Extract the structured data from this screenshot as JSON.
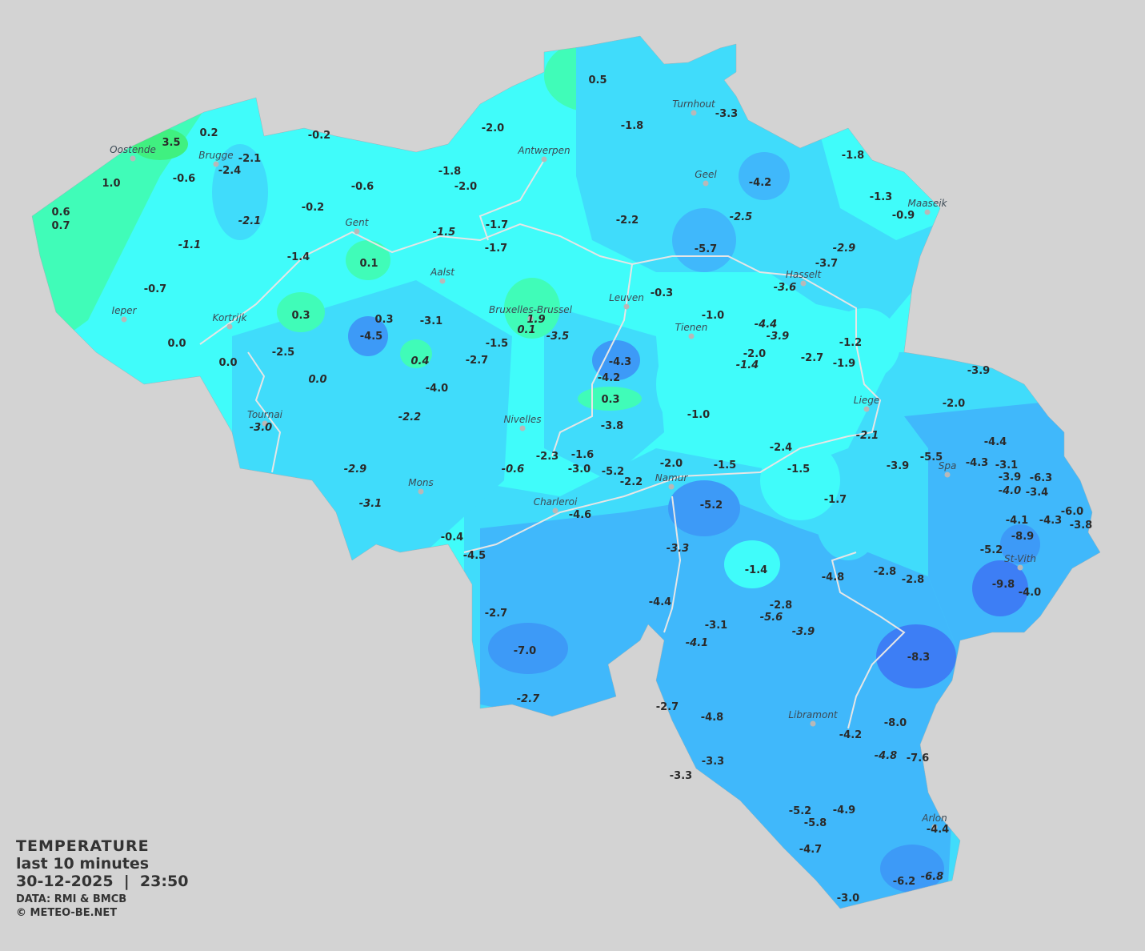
{
  "legend": {
    "title": "TEMPERATURE",
    "subtitle": "last 10 minutes",
    "datetime": "30-12-2025  |  23:50",
    "source": "DATA: RMI & BMCB",
    "copyright": "© METEO-BE.NET"
  },
  "colors": {
    "background": "#d3d3d3",
    "cold_deep": "#3d7ef5",
    "cold": "#40b8fb",
    "cool": "#40dcfb",
    "mild": "#40fcfa",
    "warm": "#40fcb8",
    "warmest": "#40f080",
    "border": "#e6e6e6"
  },
  "cities": [
    "Oostende",
    "Brugge",
    "Gent",
    "Antwerpen",
    "Turnhout",
    "Geel",
    "Maaseik",
    "Hasselt",
    "Aalst",
    "Kortrijk",
    "Ieper",
    "Bruxelles-Brussel",
    "Leuven",
    "Tienen",
    "Liege",
    "Tournai",
    "Nivelles",
    "Mons",
    "Charleroi",
    "Namur",
    "Spa",
    "St-Vith",
    "Libramont",
    "Arlon"
  ],
  "readings": [
    {
      "t": "3.5"
    },
    {
      "t": "0.2"
    },
    {
      "t": "1.0"
    },
    {
      "t": "0.6"
    },
    {
      "t": "0.7"
    },
    {
      "t": "-0.6"
    },
    {
      "t": "-2.1"
    },
    {
      "t": "-2.4"
    },
    {
      "t": "-2.1",
      "i": true
    },
    {
      "t": "-0.2"
    },
    {
      "t": "-0.2"
    },
    {
      "t": "-0.6"
    },
    {
      "t": "-1.1",
      "i": true
    },
    {
      "t": "-1.4"
    },
    {
      "t": "0.1"
    },
    {
      "t": "-0.7"
    },
    {
      "t": "0.3"
    },
    {
      "t": "0.3"
    },
    {
      "t": "-4.5"
    },
    {
      "t": "-2.5"
    },
    {
      "t": "0.0"
    },
    {
      "t": "0.0"
    },
    {
      "t": "0.0",
      "i": true
    },
    {
      "t": "0.4",
      "i": true
    },
    {
      "t": "-3.1"
    },
    {
      "t": "-2.7"
    },
    {
      "t": "-4.0"
    },
    {
      "t": "-2.2",
      "i": true
    },
    {
      "t": "-3.0",
      "i": true
    },
    {
      "t": "-2.9",
      "i": true
    },
    {
      "t": "-3.1",
      "i": true
    },
    {
      "t": "-2.0"
    },
    {
      "t": "-1.8"
    },
    {
      "t": "-2.0"
    },
    {
      "t": "-1.5",
      "i": true
    },
    {
      "t": "-1.7"
    },
    {
      "t": "-1.7"
    },
    {
      "t": "0.5"
    },
    {
      "t": "-1.8"
    },
    {
      "t": "-3.3"
    },
    {
      "t": "-4.2"
    },
    {
      "t": "-2.2"
    },
    {
      "t": "-2.5",
      "i": true
    },
    {
      "t": "-5.7"
    },
    {
      "t": "-1.8"
    },
    {
      "t": "-1.3"
    },
    {
      "t": "-0.9"
    },
    {
      "t": "-2.9",
      "i": true
    },
    {
      "t": "-3.7"
    },
    {
      "t": "-3.6",
      "i": true
    },
    {
      "t": "1.9",
      "i": true
    },
    {
      "t": "0.1",
      "i": true
    },
    {
      "t": "-3.5",
      "i": true
    },
    {
      "t": "-1.5"
    },
    {
      "t": "-0.3"
    },
    {
      "t": "-1.0"
    },
    {
      "t": "-4.4",
      "i": true
    },
    {
      "t": "-3.9",
      "i": true
    },
    {
      "t": "-2.0"
    },
    {
      "t": "-1.4",
      "i": true
    },
    {
      "t": "-2.7"
    },
    {
      "t": "-1.2"
    },
    {
      "t": "-1.9"
    },
    {
      "t": "-4.3"
    },
    {
      "t": "-4.2"
    },
    {
      "t": "0.3"
    },
    {
      "t": "-3.8"
    },
    {
      "t": "-1.0"
    },
    {
      "t": "-0.6",
      "i": true
    },
    {
      "t": "-2.3"
    },
    {
      "t": "-1.6"
    },
    {
      "t": "-3.0"
    },
    {
      "t": "-5.2"
    },
    {
      "t": "-2.2"
    },
    {
      "t": "-2.0"
    },
    {
      "t": "-1.5"
    },
    {
      "t": "-2.4"
    },
    {
      "t": "-1.5"
    },
    {
      "t": "-1.7"
    },
    {
      "t": "-2.1",
      "i": true
    },
    {
      "t": "-3.9"
    },
    {
      "t": "-2.0"
    },
    {
      "t": "-3.9"
    },
    {
      "t": "-5.5"
    },
    {
      "t": "-4.4"
    },
    {
      "t": "-4.3"
    },
    {
      "t": "-3.1"
    },
    {
      "t": "-3.9"
    },
    {
      "t": "-6.3"
    },
    {
      "t": "-4.0",
      "i": true
    },
    {
      "t": "-3.4"
    },
    {
      "t": "-6.0"
    },
    {
      "t": "-4.3"
    },
    {
      "t": "-3.8"
    },
    {
      "t": "-4.1"
    },
    {
      "t": "-8.9"
    },
    {
      "t": "-5.2"
    },
    {
      "t": "-9.8"
    },
    {
      "t": "-4.0"
    },
    {
      "t": "-0.4"
    },
    {
      "t": "-4.5"
    },
    {
      "t": "-4.6"
    },
    {
      "t": "-5.2"
    },
    {
      "t": "-3.3",
      "i": true
    },
    {
      "t": "-1.4"
    },
    {
      "t": "-4.8"
    },
    {
      "t": "-2.8"
    },
    {
      "t": "-2.8"
    },
    {
      "t": "-2.7"
    },
    {
      "t": "-7.0"
    },
    {
      "t": "-4.4"
    },
    {
      "t": "-3.1"
    },
    {
      "t": "-4.1",
      "i": true
    },
    {
      "t": "-2.8"
    },
    {
      "t": "-5.6",
      "i": true
    },
    {
      "t": "-3.9",
      "i": true
    },
    {
      "t": "-8.3"
    },
    {
      "t": "-2.7",
      "i": true
    },
    {
      "t": "-2.7"
    },
    {
      "t": "-4.8"
    },
    {
      "t": "-4.2"
    },
    {
      "t": "-8.0"
    },
    {
      "t": "-4.8",
      "i": true
    },
    {
      "t": "-7.6"
    },
    {
      "t": "-3.3"
    },
    {
      "t": "-3.3"
    },
    {
      "t": "-5.2"
    },
    {
      "t": "-5.8"
    },
    {
      "t": "-4.9"
    },
    {
      "t": "-4.4"
    },
    {
      "t": "-4.7"
    },
    {
      "t": "-6.2"
    },
    {
      "t": "-6.8",
      "i": true
    },
    {
      "t": "-3.0"
    }
  ]
}
